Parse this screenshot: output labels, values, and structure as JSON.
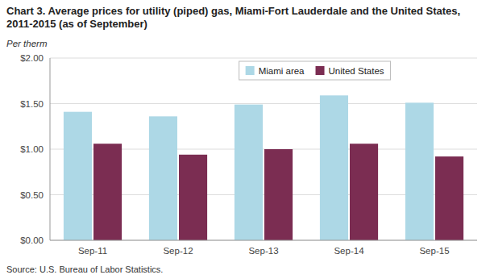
{
  "chart_data": {
    "type": "bar",
    "title": "Chart 3. Average prices for utility (piped) gas, Miami-Fort Lauderdale and the United States, 2011-2015 (as of September)",
    "y_label": "Per therm",
    "annotations": [
      "Source: U.S. Bureau of Labor Statistics."
    ],
    "categories": [
      "Sep-11",
      "Sep-12",
      "Sep-13",
      "Sep-14",
      "Sep-15"
    ],
    "series": [
      {
        "name": "Miami area",
        "color": "#ADD8E6",
        "values": [
          1.41,
          1.36,
          1.49,
          1.59,
          1.51
        ]
      },
      {
        "name": "United States",
        "color": "#7B2D52",
        "values": [
          1.06,
          0.94,
          1.0,
          1.06,
          0.92
        ]
      }
    ],
    "ylim": [
      0.0,
      2.0
    ],
    "yticks": [
      {
        "value": 0.0,
        "label": "$0.00"
      },
      {
        "value": 0.5,
        "label": "$0.50"
      },
      {
        "value": 1.0,
        "label": "$1.00"
      },
      {
        "value": 1.5,
        "label": "$1.50"
      },
      {
        "value": 2.0,
        "label": "$2.00"
      }
    ],
    "grid": true,
    "legend": "top"
  }
}
